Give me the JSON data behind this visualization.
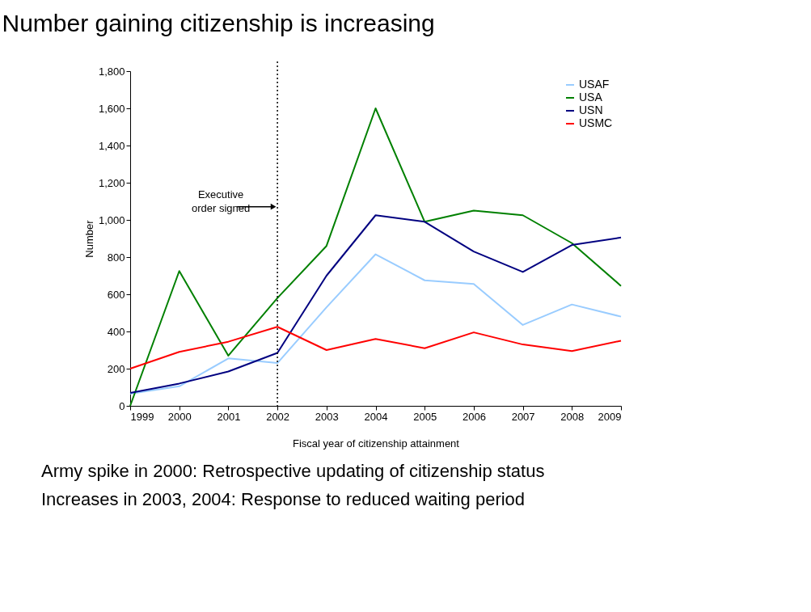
{
  "chart_data": {
    "type": "line",
    "title": "Number gaining citizenship is increasing",
    "xlabel": "Fiscal year of citizenship attainment",
    "ylabel": "Number",
    "x": [
      1999,
      2000,
      2001,
      2002,
      2003,
      2004,
      2005,
      2006,
      2007,
      2008,
      2009
    ],
    "series": [
      {
        "name": "USAF",
        "color": "#99ccff",
        "values": [
          65,
          105,
          255,
          230,
          530,
          815,
          675,
          655,
          435,
          545,
          480
        ]
      },
      {
        "name": "USA",
        "color": "#008000",
        "values": [
          0,
          725,
          270,
          580,
          860,
          1600,
          990,
          1050,
          1025,
          875,
          645
        ]
      },
      {
        "name": "USN",
        "color": "#000080",
        "values": [
          70,
          120,
          185,
          285,
          700,
          1025,
          990,
          830,
          720,
          865,
          905
        ]
      },
      {
        "name": "USMC",
        "color": "#ff0000",
        "values": [
          200,
          290,
          345,
          425,
          300,
          360,
          310,
          395,
          330,
          295,
          350
        ]
      }
    ],
    "xlim": [
      1999,
      2009
    ],
    "xticks": [
      1999,
      2000,
      2001,
      2002,
      2003,
      2004,
      2005,
      2006,
      2007,
      2008,
      2009
    ],
    "ylim": [
      0,
      1800
    ],
    "yticks": [
      0,
      200,
      400,
      600,
      800,
      {
        "value": 1000,
        "label": "1,000"
      },
      {
        "value": 1200,
        "label": "1,200"
      },
      {
        "value": 1400,
        "label": "1,400"
      },
      {
        "value": 1600,
        "label": "1,600"
      },
      {
        "value": 1800,
        "label": "1,800"
      }
    ],
    "ref_lines": [
      {
        "axis": "x",
        "value": 2002,
        "label": "Executive order signed",
        "line_style": "dotted",
        "color": "#000000"
      }
    ],
    "annotations": [
      "Army spike in 2000: Retrospective updating of citizenship status",
      "Increases in 2003, 2004: Response to reduced waiting period"
    ],
    "grid": false,
    "legend": "top right",
    "marker": "none",
    "line_style": "solid"
  }
}
